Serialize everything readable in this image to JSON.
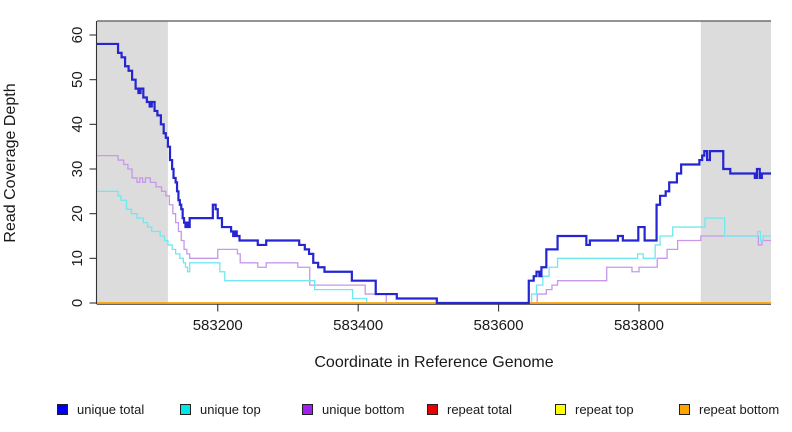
{
  "figure": {
    "x_axis": {
      "label": "Coordinate in Reference Genome",
      "ticks": [
        "583200",
        "583400",
        "583600",
        "583800"
      ],
      "tick_values": [
        583200,
        583400,
        583600,
        583800
      ]
    },
    "y_axis": {
      "label": "Read Coverage Depth",
      "ticks": [
        "0",
        "10",
        "20",
        "30",
        "40",
        "50",
        "60"
      ],
      "tick_values": [
        0,
        10,
        20,
        30,
        40,
        50,
        60
      ]
    },
    "shaded_region_color": "#dcdcdc",
    "shaded_regions": [
      {
        "from": 583028,
        "to": 583129
      },
      {
        "from": 583888,
        "to": 583988
      }
    ]
  },
  "chart_data": {
    "type": "line",
    "step": true,
    "title": "",
    "xlabel": "Coordinate in Reference Genome",
    "ylabel": "Read Coverage Depth",
    "xlim": [
      583028,
      583988
    ],
    "ylim": [
      0,
      60
    ],
    "grid": false,
    "legend_position": "bottom",
    "legend": [
      {
        "label": "unique total",
        "swatch": "#0000ee"
      },
      {
        "label": "unique top",
        "swatch": "#00e5e5"
      },
      {
        "label": "unique bottom",
        "swatch": "#a020f0"
      },
      {
        "label": "repeat total",
        "swatch": "#e60000"
      },
      {
        "label": "repeat top",
        "swatch": "#ffff00"
      },
      {
        "label": "repeat bottom",
        "swatch": "#ffa500"
      }
    ],
    "series": [
      {
        "name": "repeat total",
        "color": "#e60000",
        "width": 1.2,
        "points": [
          [
            583028,
            0
          ],
          [
            583988,
            0
          ]
        ]
      },
      {
        "name": "repeat top",
        "color": "#ffff00",
        "width": 1.2,
        "points": [
          [
            583028,
            0
          ],
          [
            583988,
            0
          ]
        ]
      },
      {
        "name": "unique bottom",
        "color": "#c797ea",
        "width": 1.3,
        "points": [
          [
            583028,
            33
          ],
          [
            583058,
            32
          ],
          [
            583066,
            31
          ],
          [
            583072,
            30
          ],
          [
            583078,
            28
          ],
          [
            583085,
            27
          ],
          [
            583089,
            28
          ],
          [
            583093,
            27
          ],
          [
            583097,
            28
          ],
          [
            583104,
            27
          ],
          [
            583112,
            26
          ],
          [
            583120,
            25
          ],
          [
            583126,
            24
          ],
          [
            583131,
            22
          ],
          [
            583136,
            20
          ],
          [
            583140,
            18
          ],
          [
            583144,
            16
          ],
          [
            583148,
            14
          ],
          [
            583152,
            12
          ],
          [
            583156,
            11
          ],
          [
            583160,
            10
          ],
          [
            583200,
            12
          ],
          [
            583228,
            11
          ],
          [
            583232,
            9
          ],
          [
            583257,
            8
          ],
          [
            583269,
            9
          ],
          [
            583314,
            8
          ],
          [
            583331,
            4
          ],
          [
            583410,
            2
          ],
          [
            583440,
            0
          ],
          [
            583655,
            2
          ],
          [
            583668,
            3
          ],
          [
            583676,
            4
          ],
          [
            583684,
            5
          ],
          [
            583754,
            8
          ],
          [
            583790,
            7
          ],
          [
            583800,
            8
          ],
          [
            583826,
            10
          ],
          [
            583840,
            12
          ],
          [
            583855,
            14
          ],
          [
            583888,
            15
          ],
          [
            583968,
            15
          ],
          [
            583970,
            13
          ],
          [
            583975,
            14
          ],
          [
            583988,
            14
          ]
        ]
      },
      {
        "name": "unique top",
        "color": "#6fe9ef",
        "width": 1.3,
        "points": [
          [
            583028,
            25
          ],
          [
            583058,
            24
          ],
          [
            583062,
            23
          ],
          [
            583070,
            21
          ],
          [
            583077,
            20
          ],
          [
            583085,
            19
          ],
          [
            583094,
            18
          ],
          [
            583100,
            17
          ],
          [
            583106,
            16
          ],
          [
            583118,
            15
          ],
          [
            583124,
            14
          ],
          [
            583129,
            13
          ],
          [
            583135,
            12
          ],
          [
            583140,
            11
          ],
          [
            583146,
            10
          ],
          [
            583151,
            9
          ],
          [
            583154,
            8
          ],
          [
            583157,
            7
          ],
          [
            583160,
            9
          ],
          [
            583203,
            7
          ],
          [
            583210,
            5
          ],
          [
            583338,
            3
          ],
          [
            583392,
            1
          ],
          [
            583412,
            0
          ],
          [
            583647,
            2
          ],
          [
            583654,
            4
          ],
          [
            583663,
            6
          ],
          [
            583672,
            8
          ],
          [
            583684,
            10
          ],
          [
            583798,
            11
          ],
          [
            583806,
            10
          ],
          [
            583823,
            13
          ],
          [
            583830,
            15
          ],
          [
            583848,
            17
          ],
          [
            583894,
            19
          ],
          [
            583922,
            15
          ],
          [
            583969,
            16
          ],
          [
            583973,
            14
          ],
          [
            583977,
            15
          ],
          [
            583988,
            15
          ]
        ]
      },
      {
        "name": "repeat bottom",
        "color": "#ffa500",
        "width": 1.5,
        "points": [
          [
            583028,
            0
          ],
          [
            583988,
            0
          ]
        ]
      },
      {
        "name": "unique total",
        "color": "#2525d2",
        "width": 2.2,
        "points": [
          [
            583028,
            58
          ],
          [
            583058,
            56
          ],
          [
            583063,
            55
          ],
          [
            583068,
            53
          ],
          [
            583073,
            52
          ],
          [
            583078,
            50
          ],
          [
            583083,
            48
          ],
          [
            583087,
            47
          ],
          [
            583090,
            48
          ],
          [
            583094,
            46
          ],
          [
            583099,
            45
          ],
          [
            583103,
            44
          ],
          [
            583106,
            45
          ],
          [
            583110,
            43
          ],
          [
            583114,
            42
          ],
          [
            583119,
            40
          ],
          [
            583123,
            38
          ],
          [
            583126,
            37
          ],
          [
            583129,
            35
          ],
          [
            583132,
            32
          ],
          [
            583135,
            30
          ],
          [
            583137,
            28
          ],
          [
            583140,
            27
          ],
          [
            583142,
            25
          ],
          [
            583144,
            23
          ],
          [
            583146,
            22
          ],
          [
            583148,
            21
          ],
          [
            583150,
            19
          ],
          [
            583152,
            18
          ],
          [
            583154,
            17
          ],
          [
            583156,
            18
          ],
          [
            583158,
            17
          ],
          [
            583160,
            19
          ],
          [
            583193,
            22
          ],
          [
            583197,
            21
          ],
          [
            583200,
            19
          ],
          [
            583206,
            17
          ],
          [
            583219,
            16
          ],
          [
            583222,
            15
          ],
          [
            583224,
            16
          ],
          [
            583227,
            15
          ],
          [
            583231,
            14
          ],
          [
            583257,
            13
          ],
          [
            583269,
            14
          ],
          [
            583316,
            13
          ],
          [
            583324,
            12
          ],
          [
            583330,
            11
          ],
          [
            583336,
            9
          ],
          [
            583343,
            8
          ],
          [
            583352,
            7
          ],
          [
            583391,
            5
          ],
          [
            583425,
            2
          ],
          [
            583455,
            1
          ],
          [
            583512,
            0
          ],
          [
            583643,
            5
          ],
          [
            583650,
            6
          ],
          [
            583654,
            7
          ],
          [
            583658,
            6
          ],
          [
            583661,
            8
          ],
          [
            583668,
            12
          ],
          [
            583684,
            15
          ],
          [
            583725,
            13
          ],
          [
            583730,
            14
          ],
          [
            583770,
            15
          ],
          [
            583777,
            14
          ],
          [
            583799,
            17
          ],
          [
            583808,
            14
          ],
          [
            583825,
            22
          ],
          [
            583830,
            24
          ],
          [
            583838,
            25
          ],
          [
            583843,
            27
          ],
          [
            583854,
            29
          ],
          [
            583860,
            31
          ],
          [
            583886,
            32
          ],
          [
            583890,
            33
          ],
          [
            583893,
            34
          ],
          [
            583897,
            32
          ],
          [
            583901,
            34
          ],
          [
            583920,
            30
          ],
          [
            583930,
            29
          ],
          [
            583965,
            28
          ],
          [
            583968,
            30
          ],
          [
            583972,
            28
          ],
          [
            583975,
            29
          ],
          [
            583988,
            29
          ]
        ]
      }
    ]
  }
}
